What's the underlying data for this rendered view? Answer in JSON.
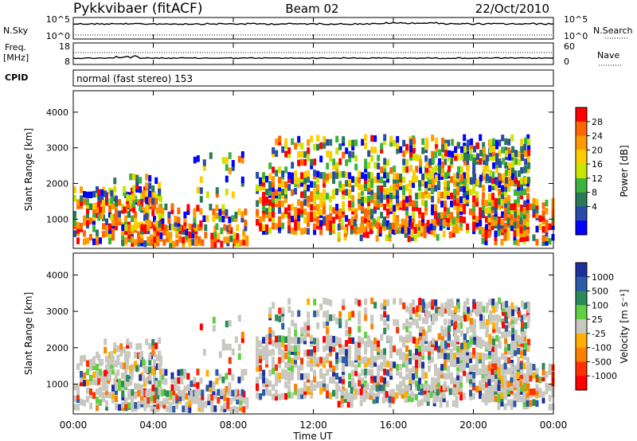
{
  "header": {
    "station": "Pykkvibaer (fitACF)",
    "beam": "Beam 02",
    "date": "22/Oct/2010"
  },
  "strip_panels": {
    "nsky_label": "N.Sky",
    "nsky_ticks": [
      "10^5",
      "10^0"
    ],
    "nsearch_label": "N.Search",
    "nsearch_ticks": [
      "10^5",
      "10^0"
    ],
    "freq_label": "Freq.",
    "freq_unit": "[MHz]",
    "freq_ticks": [
      "18",
      "8"
    ],
    "nave_label": "Nave",
    "nave_ticks": [
      "60",
      "0"
    ],
    "cpid_label": "CPID",
    "cpid_text": "normal (fast stereo) 153"
  },
  "x_axis": {
    "label": "Time UT",
    "ticks": [
      "00:00",
      "04:00",
      "08:00",
      "12:00",
      "16:00",
      "20:00",
      "00:00"
    ],
    "range_hours": [
      0,
      24
    ]
  },
  "chart_data": [
    {
      "type": "heatmap",
      "name": "power",
      "ylabel": "Slant Range [km]",
      "ylim": [
        180,
        4600
      ],
      "y_ticks": [
        1000,
        2000,
        3000,
        4000
      ],
      "colorbar_label": "Power [dB]",
      "colorbar_ticks": [
        "28",
        "24",
        "20",
        "16",
        "12",
        "8",
        "4"
      ],
      "colorbar_colors": [
        "#ff0000",
        "#ff6600",
        "#ff9900",
        "#ffcc00",
        "#c8e600",
        "#3cb43c",
        "#2a7a5a",
        "#2a4aa8",
        "#0000ff"
      ]
    },
    {
      "type": "heatmap",
      "name": "velocity",
      "ylabel": "Slant Range [km]",
      "ylim": [
        180,
        4600
      ],
      "y_ticks": [
        1000,
        2000,
        3000,
        4000
      ],
      "colorbar_label": "Velocity [m s⁻¹]",
      "colorbar_ticks": [
        "1000",
        "500",
        "100",
        "25",
        "-25",
        "-100",
        "-500",
        "-1000"
      ],
      "colorbar_colors": [
        "#1d2f9e",
        "#2a5aa8",
        "#2a8a5a",
        "#60d040",
        "#c8c8c0",
        "#ffb000",
        "#ff8000",
        "#ff3000",
        "#ff0000"
      ]
    }
  ]
}
